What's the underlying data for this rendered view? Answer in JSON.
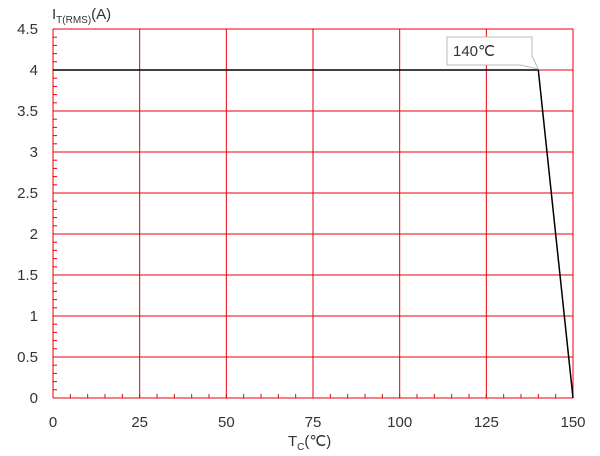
{
  "chart_data": {
    "type": "line",
    "title": "",
    "xlabel": {
      "main": "T",
      "sub": "C",
      "suffix": "(℃)"
    },
    "ylabel": {
      "main": "I",
      "sub": "T(RMS)",
      "suffix": "(A)"
    },
    "xlim": [
      0,
      150
    ],
    "ylim": [
      0,
      4.5
    ],
    "xticks": [
      0,
      25,
      50,
      75,
      100,
      125,
      150
    ],
    "yticks": [
      0,
      0.5,
      1,
      1.5,
      2,
      2.5,
      3,
      3.5,
      4,
      4.5
    ],
    "xtick_labels": [
      "0",
      "25",
      "50",
      "75",
      "100",
      "125",
      "150"
    ],
    "ytick_labels": [
      "0",
      "0.5",
      "1",
      "1.5",
      "2",
      "2.5",
      "3",
      "3.5",
      "4",
      "4.5"
    ],
    "grid": true,
    "legend": "none",
    "series": [
      {
        "x": [
          0,
          140,
          150
        ],
        "y": [
          4,
          4,
          0
        ]
      }
    ],
    "annotations": [
      {
        "text": "140℃",
        "x": 140,
        "y": 4
      }
    ],
    "colors": {
      "grid": "#e8000b",
      "line": "#000000",
      "text": "#333333",
      "callout_border": "#bbbbbb"
    }
  }
}
